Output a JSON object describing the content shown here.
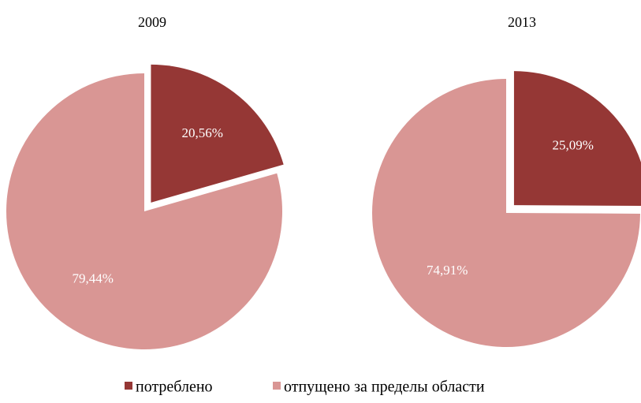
{
  "legend": {
    "labels": [
      "потреблено",
      "отпущено за пределы области"
    ]
  },
  "chart_data": [
    {
      "type": "pie",
      "title": "2009",
      "values": [
        20.56,
        79.44
      ],
      "value_labels": [
        "20,56%",
        "79,44%"
      ],
      "colors": [
        "#953735",
        "#d99694"
      ],
      "explode": [
        true,
        false
      ]
    },
    {
      "type": "pie",
      "title": "2013",
      "values": [
        25.09,
        74.91
      ],
      "value_labels": [
        "25,09%",
        "74,91%"
      ],
      "colors": [
        "#953735",
        "#d99694"
      ],
      "explode": [
        true,
        false
      ]
    }
  ]
}
